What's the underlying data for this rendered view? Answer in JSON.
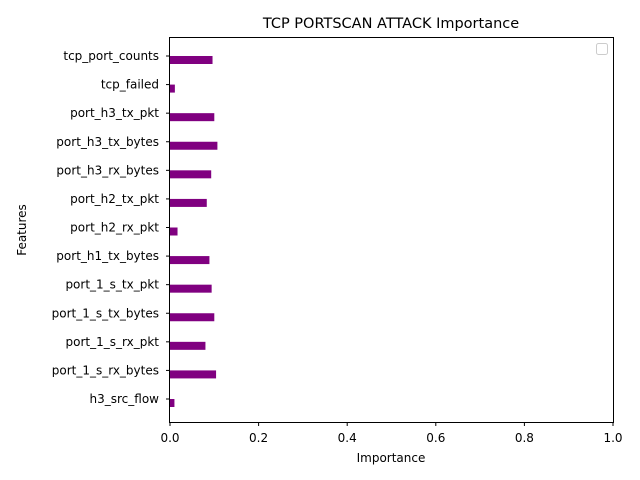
{
  "chart_data": {
    "type": "bar",
    "orientation": "horizontal",
    "title": "TCP PORTSCAN ATTACK Importance",
    "xlabel": "Importance",
    "ylabel": "Features",
    "xlim": [
      0,
      1
    ],
    "xticks": [
      "0.0",
      "0.2",
      "0.4",
      "0.6",
      "0.8",
      "1.0"
    ],
    "grid": false,
    "legend": "top-right (empty)",
    "bar_color": "#800080",
    "categories": [
      "h3_src_flow",
      "port_1_s_rx_bytes",
      "port_1_s_rx_pkt",
      "port_1_s_tx_bytes",
      "port_1_s_tx_pkt",
      "port_h1_tx_bytes",
      "port_h2_rx_pkt",
      "port_h2_tx_pkt",
      "port_h3_rx_bytes",
      "port_h3_tx_bytes",
      "port_h3_tx_pkt",
      "tcp_failed",
      "tcp_port_counts"
    ],
    "values": [
      0.01,
      0.104,
      0.08,
      0.1,
      0.094,
      0.089,
      0.017,
      0.083,
      0.093,
      0.107,
      0.1,
      0.011,
      0.096
    ]
  }
}
